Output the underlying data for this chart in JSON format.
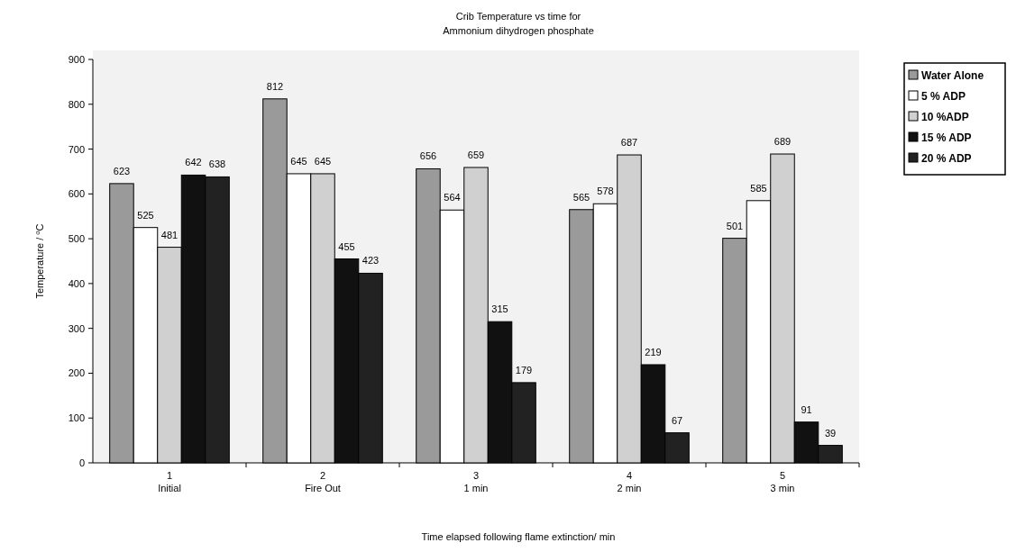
{
  "chart_data": {
    "type": "bar",
    "title": "Crib Temperature vs time for\nAmmonium dihydrogen phosphate",
    "xlabel": "Time elapsed following flame extinction/ min",
    "ylabel": "Temperature / $^{o}$C",
    "categories": [
      "1\nInitial",
      "2\nFire Out",
      "3\n1 min",
      "4\n2 min",
      "5\n3 min"
    ],
    "series": [
      {
        "name": "Water Alone",
        "color": "#9a9a9a",
        "values": [
          623,
          812,
          656,
          565,
          501
        ]
      },
      {
        "name": "5 % ADP",
        "color": "#ffffff",
        "values": [
          525,
          645,
          564,
          578,
          585
        ]
      },
      {
        "name": "10 %ADP",
        "color": "#d0d0d0",
        "values": [
          481,
          645,
          659,
          687,
          689
        ]
      },
      {
        "name": "15 % ADP",
        "color": "#111111",
        "values": [
          642,
          455,
          315,
          219,
          91
        ]
      },
      {
        "name": "20 % ADP",
        "color": "#222222",
        "values": [
          638,
          423,
          179,
          67,
          39
        ]
      }
    ],
    "ylim": [
      0,
      900
    ],
    "yticks": [
      0,
      100,
      200,
      300,
      400,
      500,
      600,
      700,
      800,
      900
    ],
    "data_labels": true,
    "legend": "top right"
  }
}
